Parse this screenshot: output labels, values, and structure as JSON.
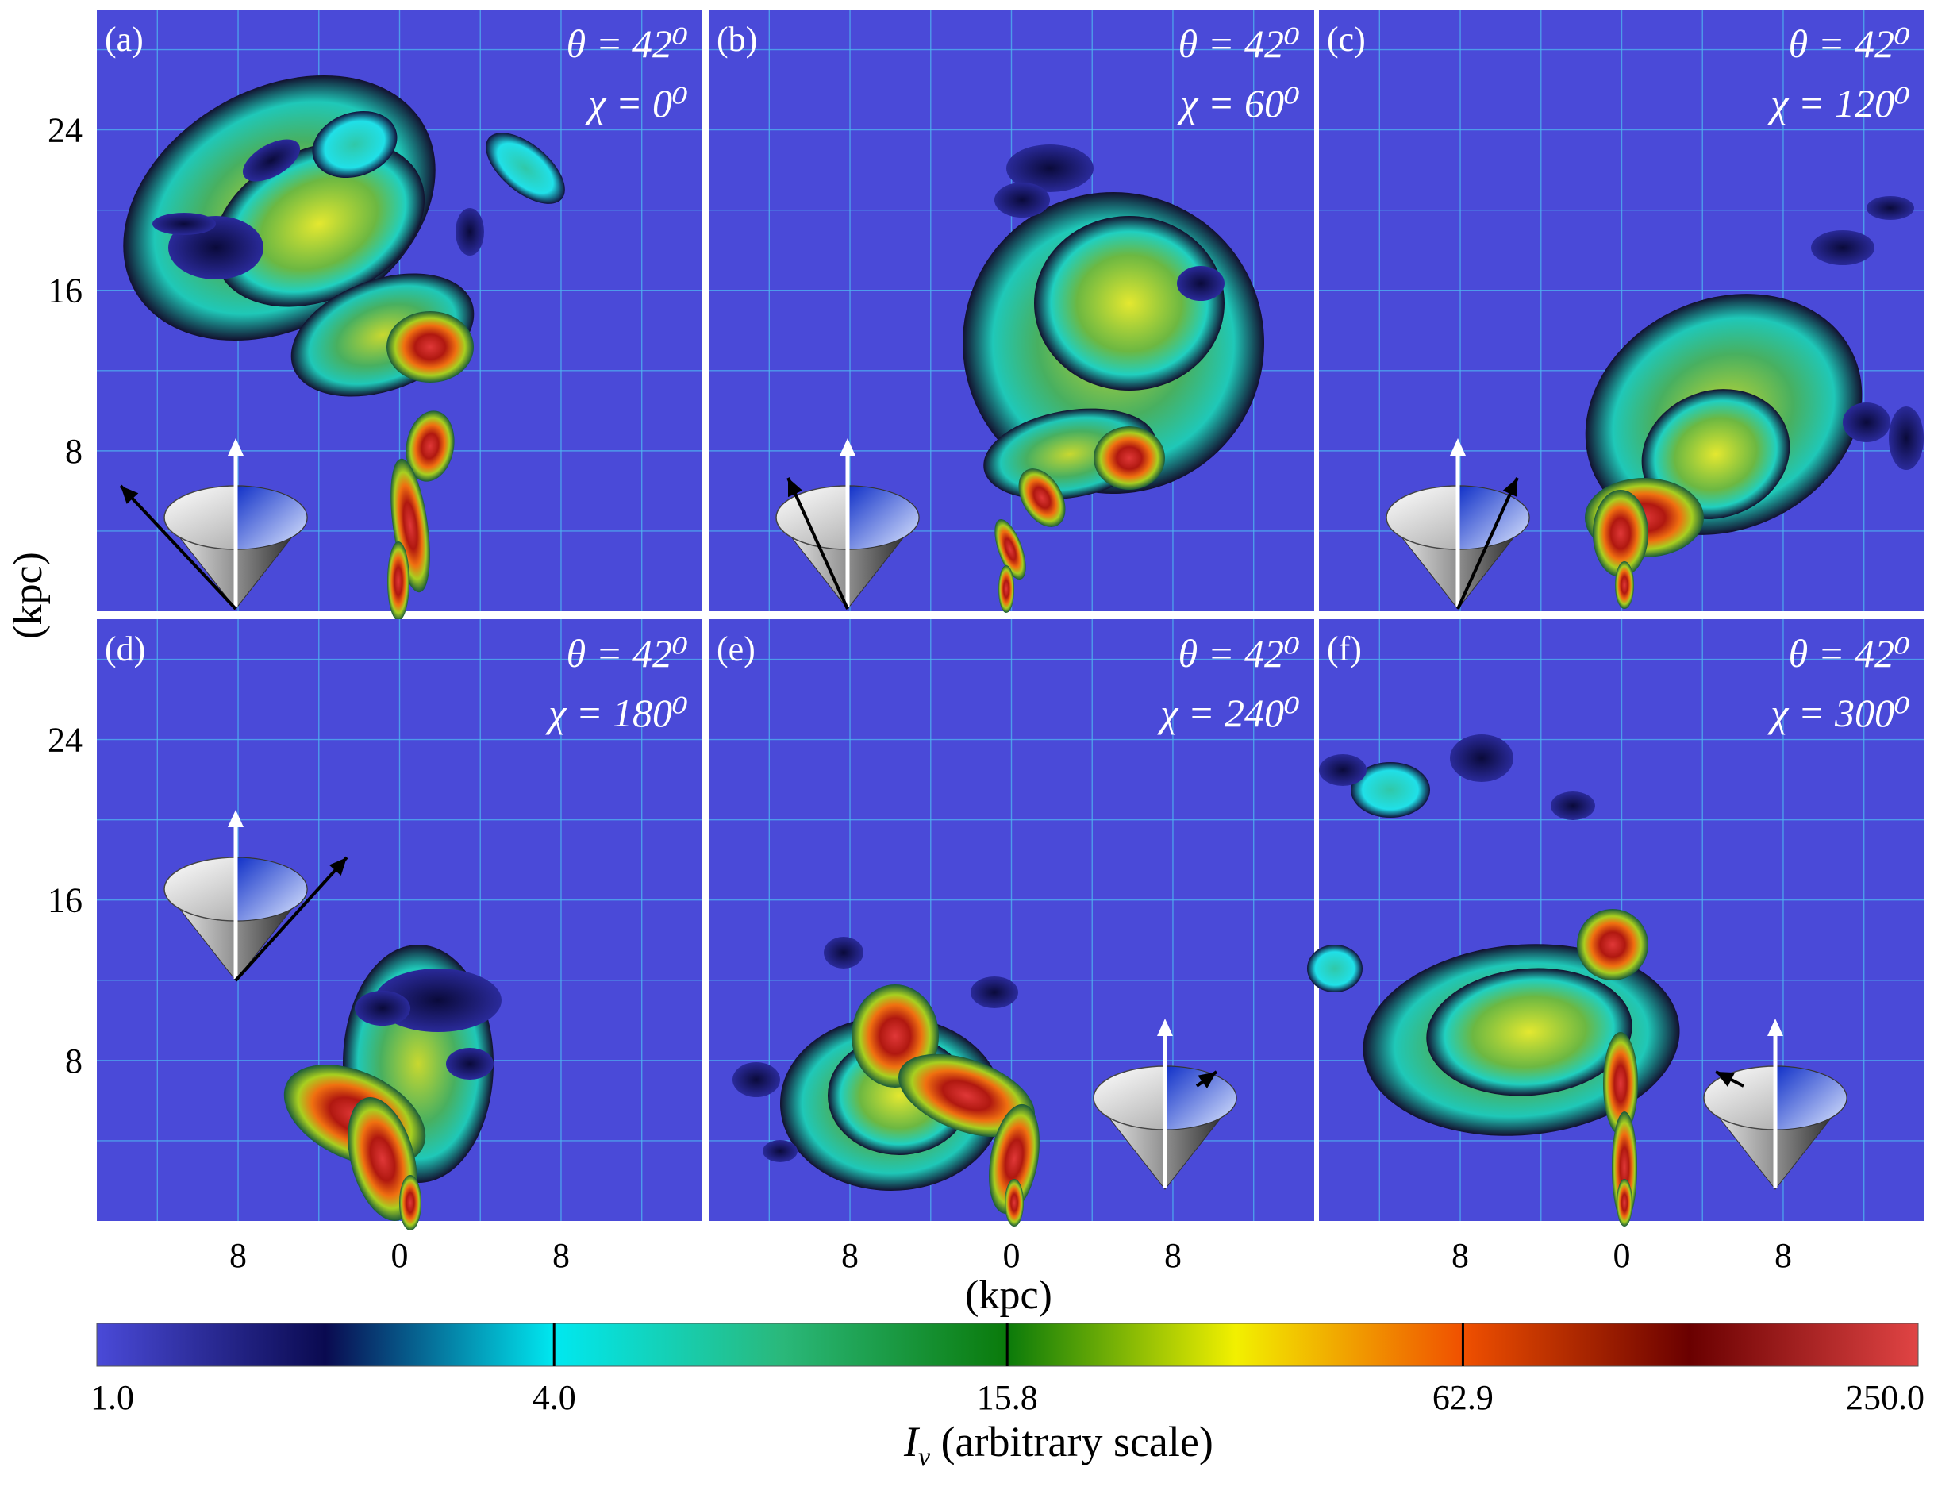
{
  "chart_data": [
    {
      "type": "heatmap",
      "panel_label": "(a)",
      "annotation_lines": [
        "θ = 42⁰",
        "χ = 0⁰"
      ],
      "theta_deg": 42,
      "chi_deg": 0,
      "xlabel": "(kpc)",
      "ylabel": "(kpc)",
      "x_tick_labels": [
        "8",
        "0",
        "8"
      ],
      "y_tick_labels": [
        "24",
        "16",
        "8"
      ],
      "xlim_kpc": [
        -15,
        15
      ],
      "ylim_kpc": [
        0,
        30
      ],
      "grid": true,
      "inset": "cone with white vertical arrow and black view-direction arrow pointing upper-left"
    },
    {
      "type": "heatmap",
      "panel_label": "(b)",
      "annotation_lines": [
        "θ = 42⁰",
        "χ = 60⁰"
      ],
      "theta_deg": 42,
      "chi_deg": 60,
      "x_tick_labels": [
        "8",
        "0",
        "8"
      ],
      "xlim_kpc": [
        -15,
        15
      ],
      "ylim_kpc": [
        0,
        30
      ],
      "grid": true,
      "inset": "cone with black view-direction arrow leaning left"
    },
    {
      "type": "heatmap",
      "panel_label": "(c)",
      "annotation_lines": [
        "θ = 42⁰",
        "χ = 120⁰"
      ],
      "theta_deg": 42,
      "chi_deg": 120,
      "x_tick_labels": [
        "8",
        "0",
        "8"
      ],
      "xlim_kpc": [
        -15,
        15
      ],
      "ylim_kpc": [
        0,
        30
      ],
      "grid": true,
      "inset": "cone with black view-direction arrow leaning right"
    },
    {
      "type": "heatmap",
      "panel_label": "(d)",
      "annotation_lines": [
        "θ = 42⁰",
        "χ = 180⁰"
      ],
      "theta_deg": 42,
      "chi_deg": 180,
      "x_tick_labels": [
        "8",
        "0",
        "8"
      ],
      "y_tick_labels": [
        "24",
        "16",
        "8"
      ],
      "xlim_kpc": [
        -15,
        15
      ],
      "ylim_kpc": [
        0,
        30
      ],
      "grid": true,
      "inset": "cone with black view-direction arrow pointing upper-right"
    },
    {
      "type": "heatmap",
      "panel_label": "(e)",
      "annotation_lines": [
        "θ = 42⁰",
        "χ = 240⁰"
      ],
      "theta_deg": 42,
      "chi_deg": 240,
      "x_tick_labels": [
        "8",
        "0",
        "8"
      ],
      "xlim_kpc": [
        -15,
        15
      ],
      "ylim_kpc": [
        0,
        30
      ],
      "grid": true,
      "inset": "cone with short black view-direction arrow pointing upper-right"
    },
    {
      "type": "heatmap",
      "panel_label": "(f)",
      "annotation_lines": [
        "θ = 42⁰",
        "χ = 300⁰"
      ],
      "theta_deg": 42,
      "chi_deg": 300,
      "x_tick_labels": [
        "8",
        "0",
        "8"
      ],
      "xlim_kpc": [
        -15,
        15
      ],
      "ylim_kpc": [
        0,
        30
      ],
      "grid": true,
      "inset": "cone with short black view-direction arrow pointing upper-left"
    }
  ],
  "shared_axes": {
    "xlabel": "(kpc)",
    "ylabel": "(kpc)"
  },
  "colorbar": {
    "scale": "log",
    "tick_values": [
      1.0,
      4.0,
      15.8,
      62.9,
      250.0
    ],
    "tick_labels": [
      "1.0",
      "4.0",
      "15.8",
      "62.9",
      "250.0"
    ],
    "label_symbol": "I",
    "label_subscript": "v",
    "label_text": "(arbitrary scale)",
    "stops": [
      {
        "value": 1.0,
        "color": "#4a4ad8"
      },
      {
        "value": 2.0,
        "color": "#0a0a50"
      },
      {
        "value": 4.0,
        "color": "#00e8f0"
      },
      {
        "value": 8.0,
        "color": "#2ab87a"
      },
      {
        "value": 15.8,
        "color": "#0a7a0a"
      },
      {
        "value": 31.6,
        "color": "#f2f000"
      },
      {
        "value": 62.9,
        "color": "#f05000"
      },
      {
        "value": 125.0,
        "color": "#6a0000"
      },
      {
        "value": 250.0,
        "color": "#e04444"
      }
    ]
  },
  "colors": {
    "background_field": "#4a4ad8",
    "grid_line": "#4fb6f0"
  }
}
